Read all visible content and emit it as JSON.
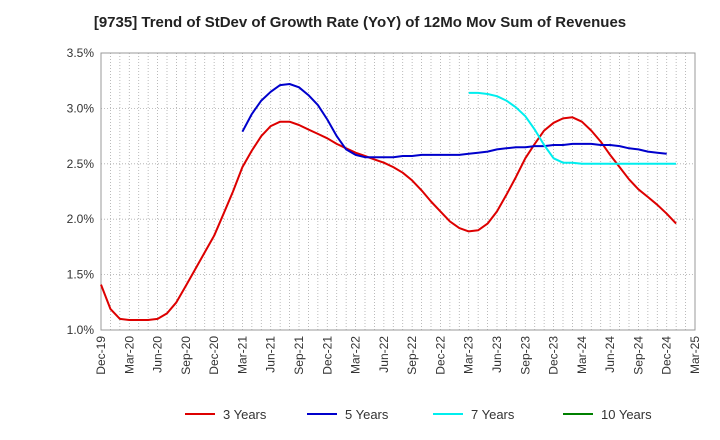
{
  "chart_data": {
    "type": "line",
    "title": "[9735]  Trend of StDev of Growth Rate (YoY) of 12Mo Mov Sum of Revenues",
    "xlabel": "",
    "ylabel": "",
    "ylim": [
      1.0,
      3.5
    ],
    "yticks": [
      1.0,
      1.5,
      2.0,
      2.5,
      3.0,
      3.5
    ],
    "ytick_labels": [
      "1.0%",
      "1.5%",
      "2.0%",
      "2.5%",
      "3.0%",
      "3.5%"
    ],
    "xticks": [
      "Dec-19",
      "Mar-20",
      "Jun-20",
      "Sep-20",
      "Dec-20",
      "Mar-21",
      "Jun-21",
      "Sep-21",
      "Dec-21",
      "Mar-22",
      "Jun-22",
      "Sep-22",
      "Dec-22",
      "Mar-23",
      "Jun-23",
      "Sep-23",
      "Dec-23",
      "Mar-24",
      "Jun-24",
      "Sep-24",
      "Dec-24",
      "Mar-25"
    ],
    "grid": true,
    "legend_position": "bottom",
    "series": [
      {
        "name": "3 Years",
        "color": "#dd0000",
        "values": [
          1.41,
          1.19,
          1.1,
          1.09,
          1.09,
          1.09,
          1.1,
          1.15,
          1.25,
          1.4,
          1.55,
          1.7,
          1.85,
          2.05,
          2.25,
          2.47,
          2.62,
          2.75,
          2.84,
          2.88,
          2.88,
          2.85,
          2.81,
          2.77,
          2.73,
          2.68,
          2.64,
          2.6,
          2.57,
          2.54,
          2.51,
          2.47,
          2.42,
          2.35,
          2.26,
          2.16,
          2.07,
          1.98,
          1.92,
          1.89,
          1.9,
          1.96,
          2.07,
          2.22,
          2.38,
          2.55,
          2.68,
          2.8,
          2.87,
          2.91,
          2.92,
          2.88,
          2.8,
          2.7,
          2.58,
          2.47,
          2.36,
          2.27,
          2.2,
          2.13,
          2.05,
          1.96
        ]
      },
      {
        "name": "5 Years",
        "color": "#0000cc",
        "start_index": 15,
        "values": [
          2.79,
          2.95,
          3.07,
          3.15,
          3.21,
          3.22,
          3.19,
          3.12,
          3.03,
          2.9,
          2.75,
          2.63,
          2.58,
          2.56,
          2.56,
          2.56,
          2.56,
          2.57,
          2.57,
          2.58,
          2.58,
          2.58,
          2.58,
          2.58,
          2.59,
          2.6,
          2.61,
          2.63,
          2.64,
          2.65,
          2.65,
          2.66,
          2.66,
          2.67,
          2.67,
          2.68,
          2.68,
          2.68,
          2.67,
          2.67,
          2.66,
          2.64,
          2.63,
          2.61,
          2.6,
          2.59
        ]
      },
      {
        "name": "7 Years",
        "color": "#00eeee",
        "start_index": 39,
        "values": [
          3.14,
          3.14,
          3.13,
          3.11,
          3.07,
          3.01,
          2.93,
          2.81,
          2.67,
          2.55,
          2.51,
          2.51,
          2.5,
          2.5,
          2.5,
          2.5,
          2.5,
          2.5,
          2.5,
          2.5,
          2.5,
          2.5,
          2.5
        ]
      },
      {
        "name": "10 Years",
        "color": "#008000",
        "values": []
      }
    ]
  }
}
